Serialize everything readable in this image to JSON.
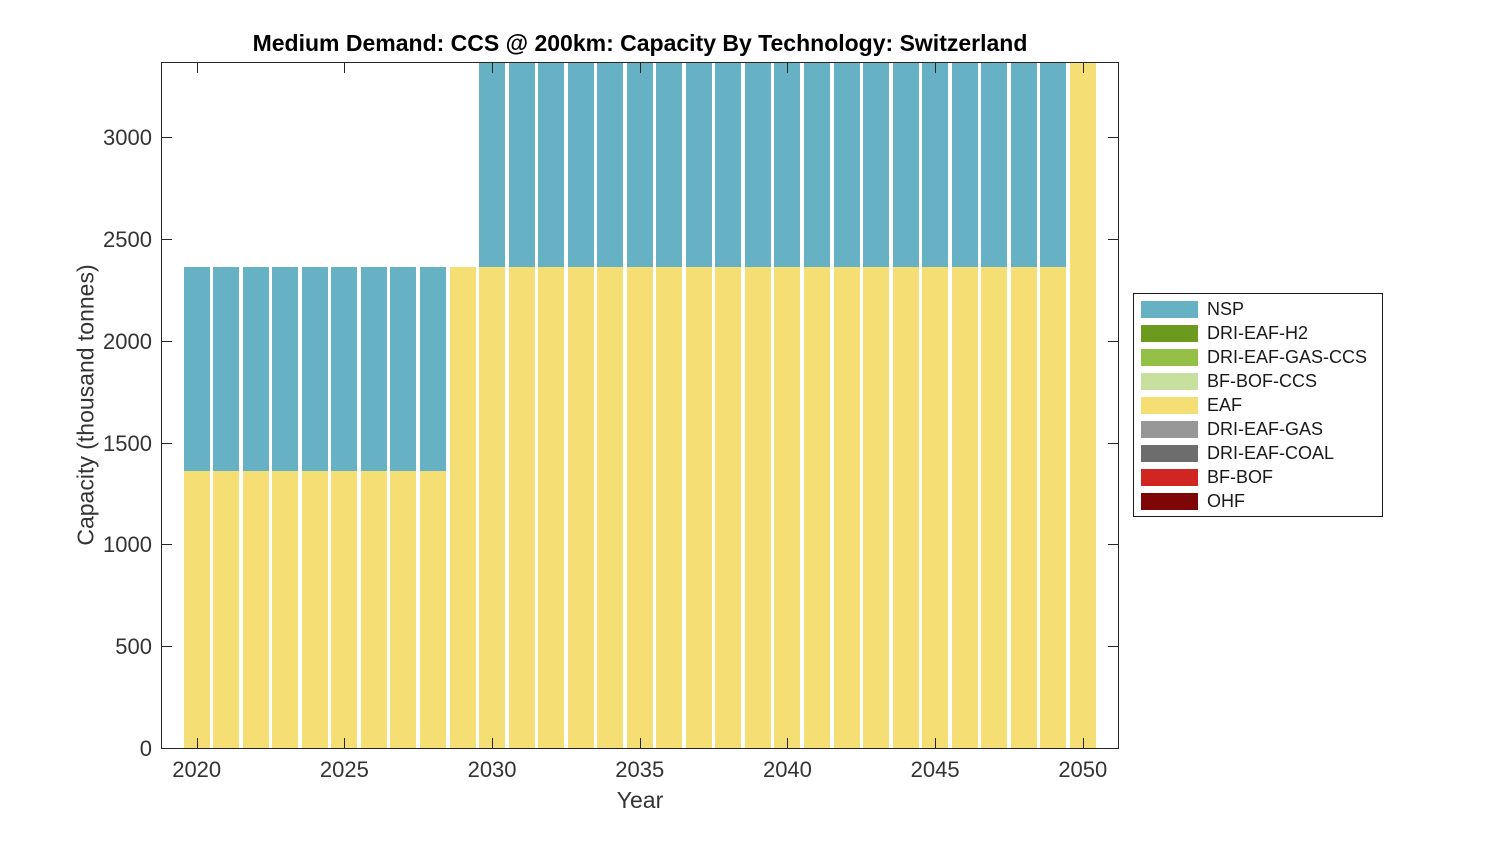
{
  "title": "Medium Demand: CCS @ 200km: Capacity By Technology: Switzerland",
  "chart_data": {
    "type": "bar",
    "stacked": true,
    "title": "Medium Demand: CCS @ 200km: Capacity By Technology: Switzerland",
    "xlabel": "Year",
    "ylabel": "Capacity (thousand tonnes)",
    "grid": false,
    "box": true,
    "tick_direction": "in",
    "legend_position": "right-outside",
    "ylim": [
      0,
      3375
    ],
    "xticks": [
      2020,
      2025,
      2030,
      2035,
      2040,
      2045,
      2050
    ],
    "yticks": [
      0,
      500,
      1000,
      1500,
      2000,
      2500,
      3000
    ],
    "years": [
      2020,
      2021,
      2022,
      2023,
      2024,
      2025,
      2026,
      2027,
      2028,
      2029,
      2030,
      2031,
      2032,
      2033,
      2034,
      2035,
      2036,
      2037,
      2038,
      2039,
      2040,
      2041,
      2042,
      2043,
      2044,
      2045,
      2046,
      2047,
      2048,
      2049,
      2050
    ],
    "stack_order": [
      "OHF",
      "BF-BOF",
      "DRI-EAF-COAL",
      "DRI-EAF-GAS",
      "EAF",
      "BF-BOF-CCS",
      "DRI-EAF-GAS-CCS",
      "DRI-EAF-H2",
      "NSP"
    ],
    "series": [
      {
        "name": "EAF",
        "values": [
          1365,
          1365,
          1365,
          1365,
          1365,
          1365,
          1365,
          1365,
          1365,
          2370,
          2370,
          2370,
          2370,
          2370,
          2370,
          2370,
          2370,
          2370,
          2370,
          2370,
          2370,
          2370,
          2370,
          2370,
          2370,
          2370,
          2370,
          2370,
          2370,
          2370,
          3375
        ]
      },
      {
        "name": "NSP",
        "values": [
          1005,
          1005,
          1005,
          1005,
          1005,
          1005,
          1005,
          1005,
          1005,
          0,
          1005,
          1005,
          1005,
          1005,
          1005,
          1005,
          1005,
          1005,
          1005,
          1005,
          1005,
          1005,
          1005,
          1005,
          1005,
          1005,
          1005,
          1005,
          1005,
          1005,
          0
        ]
      }
    ],
    "legend": [
      {
        "name": "NSP",
        "color": "#66B2C4"
      },
      {
        "name": "DRI-EAF-H2",
        "color": "#6B9A1E"
      },
      {
        "name": "DRI-EAF-GAS-CCS",
        "color": "#94C047"
      },
      {
        "name": "BF-BOF-CCS",
        "color": "#C8E09E"
      },
      {
        "name": "EAF",
        "color": "#F5DE73"
      },
      {
        "name": "DRI-EAF-GAS",
        "color": "#979797"
      },
      {
        "name": "DRI-EAF-COAL",
        "color": "#6D6D6D"
      },
      {
        "name": "BF-BOF",
        "color": "#D02621"
      },
      {
        "name": "OHF",
        "color": "#7E0606"
      }
    ],
    "colors": {
      "axis": "#262626",
      "background": "#ffffff"
    }
  }
}
